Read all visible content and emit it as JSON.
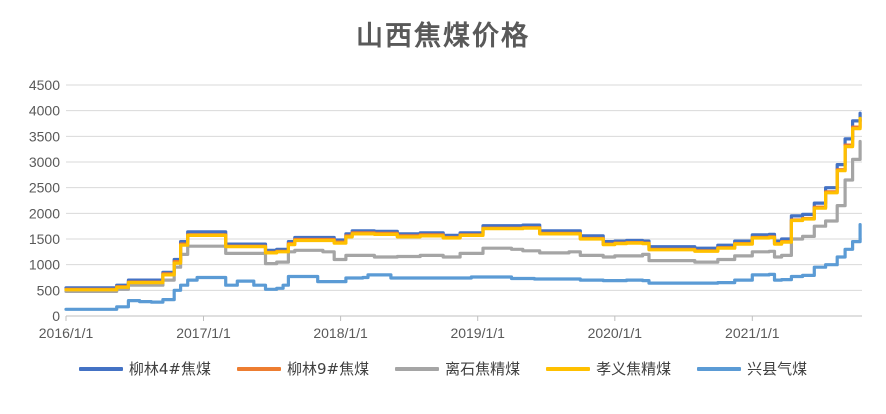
{
  "chart_data": {
    "type": "line",
    "title": "山西焦煤价格",
    "xlabel": "",
    "ylabel": "",
    "ylim": [
      0,
      4500
    ],
    "yticks": [
      0,
      500,
      1000,
      1500,
      2000,
      2500,
      3000,
      3500,
      4000,
      4500
    ],
    "xlim": [
      "2016-01-01",
      "2021-10-20"
    ],
    "xticks": [
      "2016/1/1",
      "2017/1/1",
      "2018/1/1",
      "2019/1/1",
      "2020/1/1",
      "2021/1/1"
    ],
    "grid": "horizontal",
    "legend": "bottom",
    "series": [
      {
        "name": "柳林4#焦煤",
        "color": "#4472C4",
        "points": [
          [
            "2016-01-01",
            550
          ],
          [
            "2016-04-01",
            550
          ],
          [
            "2016-05-15",
            600
          ],
          [
            "2016-06-15",
            700
          ],
          [
            "2016-08-15",
            700
          ],
          [
            "2016-09-15",
            850
          ],
          [
            "2016-10-15",
            1100
          ],
          [
            "2016-11-01",
            1450
          ],
          [
            "2016-11-20",
            1640
          ],
          [
            "2017-02-15",
            1640
          ],
          [
            "2017-03-01",
            1400
          ],
          [
            "2017-05-15",
            1400
          ],
          [
            "2017-06-15",
            1280
          ],
          [
            "2017-07-15",
            1300
          ],
          [
            "2017-08-15",
            1450
          ],
          [
            "2017-09-01",
            1530
          ],
          [
            "2017-11-15",
            1530
          ],
          [
            "2017-12-15",
            1480
          ],
          [
            "2018-01-15",
            1600
          ],
          [
            "2018-02-01",
            1660
          ],
          [
            "2018-04-01",
            1650
          ],
          [
            "2018-06-01",
            1600
          ],
          [
            "2018-08-01",
            1620
          ],
          [
            "2018-10-01",
            1570
          ],
          [
            "2018-11-15",
            1620
          ],
          [
            "2019-01-15",
            1760
          ],
          [
            "2019-04-01",
            1760
          ],
          [
            "2019-05-01",
            1770
          ],
          [
            "2019-06-15",
            1660
          ],
          [
            "2019-09-01",
            1660
          ],
          [
            "2019-10-01",
            1560
          ],
          [
            "2019-12-01",
            1450
          ],
          [
            "2020-01-01",
            1460
          ],
          [
            "2020-02-01",
            1470
          ],
          [
            "2020-03-15",
            1460
          ],
          [
            "2020-04-01",
            1350
          ],
          [
            "2020-08-01",
            1320
          ],
          [
            "2020-10-01",
            1380
          ],
          [
            "2020-11-15",
            1460
          ],
          [
            "2021-01-01",
            1580
          ],
          [
            "2021-02-15",
            1590
          ],
          [
            "2021-03-01",
            1460
          ],
          [
            "2021-03-20",
            1500
          ],
          [
            "2021-04-15",
            1950
          ],
          [
            "2021-05-15",
            1980
          ],
          [
            "2021-06-15",
            2200
          ],
          [
            "2021-07-15",
            2500
          ],
          [
            "2021-08-15",
            2950
          ],
          [
            "2021-09-05",
            3450
          ],
          [
            "2021-09-25",
            3800
          ],
          [
            "2021-10-15",
            3950
          ]
        ]
      },
      {
        "name": "柳林9#焦煤",
        "color": "#ED7D31",
        "points": [
          [
            "2016-01-01",
            520
          ],
          [
            "2016-04-01",
            520
          ],
          [
            "2016-05-15",
            570
          ],
          [
            "2016-06-15",
            660
          ],
          [
            "2016-08-15",
            660
          ],
          [
            "2016-09-15",
            820
          ],
          [
            "2016-10-15",
            1060
          ],
          [
            "2016-11-01",
            1400
          ],
          [
            "2016-11-20",
            1580
          ],
          [
            "2017-02-15",
            1580
          ],
          [
            "2017-03-01",
            1360
          ],
          [
            "2017-05-15",
            1360
          ],
          [
            "2017-06-15",
            1240
          ],
          [
            "2017-07-15",
            1260
          ],
          [
            "2017-08-15",
            1410
          ],
          [
            "2017-09-01",
            1490
          ],
          [
            "2017-11-15",
            1490
          ],
          [
            "2017-12-15",
            1440
          ],
          [
            "2018-01-15",
            1560
          ],
          [
            "2018-02-01",
            1620
          ],
          [
            "2018-04-01",
            1610
          ],
          [
            "2018-06-01",
            1560
          ],
          [
            "2018-08-01",
            1580
          ],
          [
            "2018-10-01",
            1530
          ],
          [
            "2018-11-15",
            1580
          ],
          [
            "2019-01-15",
            1710
          ],
          [
            "2019-04-01",
            1710
          ],
          [
            "2019-05-01",
            1720
          ],
          [
            "2019-06-15",
            1610
          ],
          [
            "2019-09-01",
            1610
          ],
          [
            "2019-10-01",
            1510
          ],
          [
            "2019-12-01",
            1400
          ],
          [
            "2020-01-01",
            1420
          ],
          [
            "2020-02-01",
            1430
          ],
          [
            "2020-03-15",
            1420
          ],
          [
            "2020-04-01",
            1300
          ],
          [
            "2020-08-01",
            1270
          ],
          [
            "2020-10-01",
            1330
          ],
          [
            "2020-11-15",
            1410
          ],
          [
            "2021-01-01",
            1530
          ],
          [
            "2021-02-15",
            1540
          ],
          [
            "2021-03-01",
            1410
          ],
          [
            "2021-03-20",
            1450
          ],
          [
            "2021-04-15",
            1870
          ],
          [
            "2021-05-15",
            1900
          ],
          [
            "2021-06-15",
            2120
          ],
          [
            "2021-07-15",
            2420
          ],
          [
            "2021-08-15",
            2850
          ],
          [
            "2021-09-05",
            3330
          ],
          [
            "2021-09-25",
            3680
          ],
          [
            "2021-10-15",
            3820
          ]
        ]
      },
      {
        "name": "离石焦精煤",
        "color": "#A5A5A5",
        "points": [
          [
            "2016-01-01",
            480
          ],
          [
            "2016-04-01",
            480
          ],
          [
            "2016-05-15",
            520
          ],
          [
            "2016-06-15",
            600
          ],
          [
            "2016-08-15",
            600
          ],
          [
            "2016-09-15",
            700
          ],
          [
            "2016-10-15",
            950
          ],
          [
            "2016-11-01",
            1200
          ],
          [
            "2016-11-20",
            1360
          ],
          [
            "2017-02-15",
            1360
          ],
          [
            "2017-03-01",
            1220
          ],
          [
            "2017-05-15",
            1220
          ],
          [
            "2017-06-15",
            1020
          ],
          [
            "2017-07-15",
            1050
          ],
          [
            "2017-08-15",
            1250
          ],
          [
            "2017-09-01",
            1280
          ],
          [
            "2017-11-15",
            1250
          ],
          [
            "2017-12-15",
            1100
          ],
          [
            "2018-01-15",
            1180
          ],
          [
            "2018-04-01",
            1150
          ],
          [
            "2018-06-01",
            1160
          ],
          [
            "2018-08-01",
            1180
          ],
          [
            "2018-10-01",
            1150
          ],
          [
            "2018-11-15",
            1220
          ],
          [
            "2019-01-15",
            1320
          ],
          [
            "2019-04-01",
            1300
          ],
          [
            "2019-05-01",
            1270
          ],
          [
            "2019-06-15",
            1230
          ],
          [
            "2019-09-01",
            1250
          ],
          [
            "2019-10-01",
            1180
          ],
          [
            "2019-12-01",
            1150
          ],
          [
            "2020-01-01",
            1170
          ],
          [
            "2020-03-15",
            1200
          ],
          [
            "2020-04-01",
            1080
          ],
          [
            "2020-08-01",
            1050
          ],
          [
            "2020-10-01",
            1100
          ],
          [
            "2020-11-15",
            1170
          ],
          [
            "2021-01-01",
            1250
          ],
          [
            "2021-02-15",
            1260
          ],
          [
            "2021-03-01",
            1150
          ],
          [
            "2021-03-20",
            1180
          ],
          [
            "2021-04-15",
            1500
          ],
          [
            "2021-05-15",
            1550
          ],
          [
            "2021-06-15",
            1750
          ],
          [
            "2021-07-15",
            1850
          ],
          [
            "2021-08-15",
            2150
          ],
          [
            "2021-09-05",
            2650
          ],
          [
            "2021-09-25",
            3050
          ],
          [
            "2021-10-15",
            3400
          ]
        ]
      },
      {
        "name": "孝义焦精煤",
        "color": "#FFC000",
        "points": [
          [
            "2016-01-01",
            510
          ],
          [
            "2016-04-01",
            510
          ],
          [
            "2016-05-15",
            560
          ],
          [
            "2016-06-15",
            650
          ],
          [
            "2016-08-15",
            650
          ],
          [
            "2016-09-15",
            800
          ],
          [
            "2016-10-15",
            1030
          ],
          [
            "2016-11-01",
            1380
          ],
          [
            "2016-11-20",
            1570
          ],
          [
            "2017-02-15",
            1570
          ],
          [
            "2017-03-01",
            1350
          ],
          [
            "2017-05-15",
            1350
          ],
          [
            "2017-06-15",
            1230
          ],
          [
            "2017-07-15",
            1250
          ],
          [
            "2017-08-15",
            1390
          ],
          [
            "2017-09-01",
            1470
          ],
          [
            "2017-11-15",
            1470
          ],
          [
            "2017-12-15",
            1420
          ],
          [
            "2018-01-15",
            1540
          ],
          [
            "2018-02-01",
            1600
          ],
          [
            "2018-04-01",
            1590
          ],
          [
            "2018-06-01",
            1540
          ],
          [
            "2018-08-01",
            1560
          ],
          [
            "2018-10-01",
            1520
          ],
          [
            "2018-11-15",
            1570
          ],
          [
            "2019-01-15",
            1700
          ],
          [
            "2019-04-01",
            1700
          ],
          [
            "2019-05-01",
            1710
          ],
          [
            "2019-06-15",
            1600
          ],
          [
            "2019-09-01",
            1600
          ],
          [
            "2019-10-01",
            1500
          ],
          [
            "2019-12-01",
            1390
          ],
          [
            "2020-01-01",
            1410
          ],
          [
            "2020-02-01",
            1420
          ],
          [
            "2020-03-15",
            1410
          ],
          [
            "2020-04-01",
            1290
          ],
          [
            "2020-08-01",
            1260
          ],
          [
            "2020-10-01",
            1320
          ],
          [
            "2020-11-15",
            1400
          ],
          [
            "2021-01-01",
            1520
          ],
          [
            "2021-02-15",
            1530
          ],
          [
            "2021-03-01",
            1400
          ],
          [
            "2021-03-20",
            1440
          ],
          [
            "2021-04-15",
            1860
          ],
          [
            "2021-05-15",
            1890
          ],
          [
            "2021-06-15",
            2100
          ],
          [
            "2021-07-15",
            2400
          ],
          [
            "2021-08-15",
            2830
          ],
          [
            "2021-09-05",
            3300
          ],
          [
            "2021-09-25",
            3650
          ],
          [
            "2021-10-15",
            3850
          ]
        ]
      },
      {
        "name": "兴县气煤",
        "color": "#5B9BD5",
        "points": [
          [
            "2016-01-01",
            130
          ],
          [
            "2016-04-01",
            130
          ],
          [
            "2016-05-15",
            180
          ],
          [
            "2016-06-15",
            300
          ],
          [
            "2016-07-15",
            280
          ],
          [
            "2016-08-15",
            270
          ],
          [
            "2016-09-15",
            320
          ],
          [
            "2016-10-15",
            500
          ],
          [
            "2016-11-01",
            600
          ],
          [
            "2016-11-20",
            700
          ],
          [
            "2016-12-15",
            750
          ],
          [
            "2017-02-15",
            750
          ],
          [
            "2017-03-01",
            600
          ],
          [
            "2017-04-01",
            680
          ],
          [
            "2017-05-15",
            600
          ],
          [
            "2017-06-15",
            520
          ],
          [
            "2017-07-15",
            540
          ],
          [
            "2017-08-01",
            600
          ],
          [
            "2017-08-15",
            770
          ],
          [
            "2017-10-15",
            770
          ],
          [
            "2017-11-01",
            670
          ],
          [
            "2017-12-15",
            670
          ],
          [
            "2018-01-15",
            740
          ],
          [
            "2018-03-01",
            750
          ],
          [
            "2018-03-15",
            800
          ],
          [
            "2018-05-01",
            800
          ],
          [
            "2018-05-15",
            740
          ],
          [
            "2018-12-15",
            760
          ],
          [
            "2019-01-15",
            760
          ],
          [
            "2019-04-01",
            730
          ],
          [
            "2019-06-01",
            720
          ],
          [
            "2019-09-01",
            720
          ],
          [
            "2019-10-01",
            700
          ],
          [
            "2019-12-01",
            690
          ],
          [
            "2020-02-01",
            700
          ],
          [
            "2020-03-15",
            690
          ],
          [
            "2020-04-01",
            640
          ],
          [
            "2020-08-01",
            640
          ],
          [
            "2020-10-01",
            650
          ],
          [
            "2020-11-15",
            700
          ],
          [
            "2021-01-01",
            800
          ],
          [
            "2021-02-15",
            810
          ],
          [
            "2021-03-01",
            700
          ],
          [
            "2021-03-20",
            710
          ],
          [
            "2021-04-15",
            770
          ],
          [
            "2021-05-15",
            790
          ],
          [
            "2021-06-15",
            950
          ],
          [
            "2021-07-15",
            1000
          ],
          [
            "2021-08-15",
            1150
          ],
          [
            "2021-09-05",
            1300
          ],
          [
            "2021-09-25",
            1450
          ],
          [
            "2021-10-15",
            1780
          ]
        ]
      }
    ]
  }
}
